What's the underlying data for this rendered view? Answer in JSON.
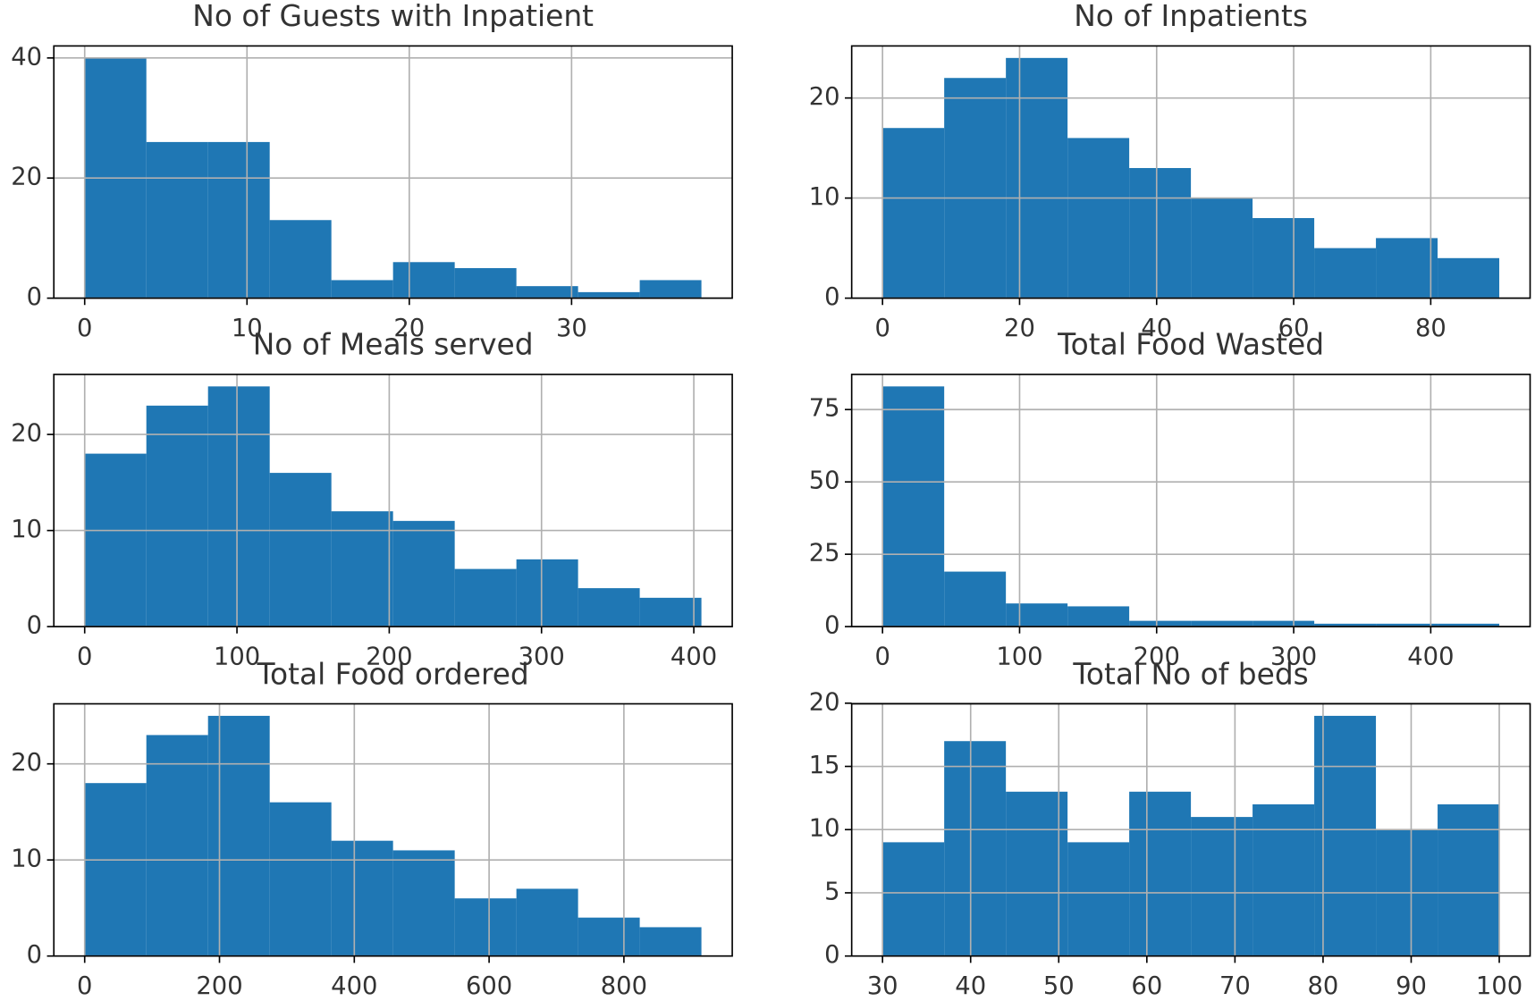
{
  "chart_data": [
    {
      "type": "histogram",
      "title": "No of Guests with Inpatient",
      "color": "#1f77b4",
      "grid": true,
      "bins": [
        0,
        3.8,
        7.6,
        11.4,
        15.2,
        19,
        22.8,
        26.6,
        30.4,
        34.2,
        38
      ],
      "values": [
        40,
        26,
        26,
        13,
        3,
        6,
        5,
        2,
        1,
        3
      ],
      "xlim": [
        -1.9,
        39.9
      ],
      "ylim": [
        0,
        42
      ],
      "xticks": [
        0,
        10,
        20,
        30
      ],
      "yticks": [
        0,
        20,
        40
      ]
    },
    {
      "type": "histogram",
      "title": "No of Inpatients",
      "color": "#1f77b4",
      "grid": true,
      "bins": [
        0,
        9,
        18,
        27,
        36,
        45,
        54,
        63,
        72,
        81,
        90
      ],
      "values": [
        17,
        22,
        24,
        16,
        13,
        10,
        8,
        5,
        6,
        4
      ],
      "xlim": [
        -4.5,
        94.5
      ],
      "ylim": [
        0,
        25.2
      ],
      "xticks": [
        0,
        20,
        40,
        60,
        80
      ],
      "yticks": [
        0,
        10,
        20
      ]
    },
    {
      "type": "histogram",
      "title": "No of Meals served",
      "color": "#1f77b4",
      "grid": true,
      "bins": [
        0,
        40.5,
        81,
        121.5,
        162,
        202.5,
        243,
        283.5,
        324,
        364.5,
        405
      ],
      "values": [
        18,
        23,
        25,
        16,
        12,
        11,
        6,
        7,
        4,
        3
      ],
      "xlim": [
        -20.25,
        425.25
      ],
      "ylim": [
        0,
        26.25
      ],
      "xticks": [
        0,
        100,
        200,
        300,
        400
      ],
      "yticks": [
        0,
        10,
        20
      ]
    },
    {
      "type": "histogram",
      "title": "Total Food Wasted",
      "color": "#1f77b4",
      "grid": true,
      "bins": [
        0,
        45,
        90,
        135,
        180,
        225,
        270,
        315,
        360,
        405,
        450
      ],
      "values": [
        83,
        19,
        8,
        7,
        2,
        2,
        2,
        1,
        1,
        1
      ],
      "xlim": [
        -22.5,
        472.5
      ],
      "ylim": [
        0,
        87.15
      ],
      "xticks": [
        0,
        100,
        200,
        300,
        400
      ],
      "yticks": [
        0,
        25,
        50,
        75
      ]
    },
    {
      "type": "histogram",
      "title": "Total Food ordered",
      "color": "#1f77b4",
      "grid": true,
      "bins": [
        0,
        91.5,
        183,
        274.5,
        366,
        457.5,
        549,
        640.5,
        732,
        823.5,
        915
      ],
      "values": [
        18,
        23,
        25,
        16,
        12,
        11,
        6,
        7,
        4,
        3
      ],
      "xlim": [
        -45.75,
        960.75
      ],
      "ylim": [
        0,
        26.25
      ],
      "xticks": [
        0,
        200,
        400,
        600,
        800
      ],
      "yticks": [
        0,
        10,
        20
      ]
    },
    {
      "type": "histogram",
      "title": "Total No of beds",
      "color": "#1f77b4",
      "grid": true,
      "bins": [
        30,
        37,
        44,
        51,
        58,
        65,
        72,
        79,
        86,
        93,
        100
      ],
      "values": [
        9,
        17,
        13,
        9,
        13,
        11,
        12,
        19,
        10,
        12
      ],
      "xlim": [
        26.5,
        103.5
      ],
      "ylim": [
        0,
        19.95
      ],
      "xticks": [
        30,
        40,
        50,
        60,
        70,
        80,
        90,
        100
      ],
      "yticks": [
        0,
        5,
        10,
        15,
        20
      ]
    }
  ]
}
